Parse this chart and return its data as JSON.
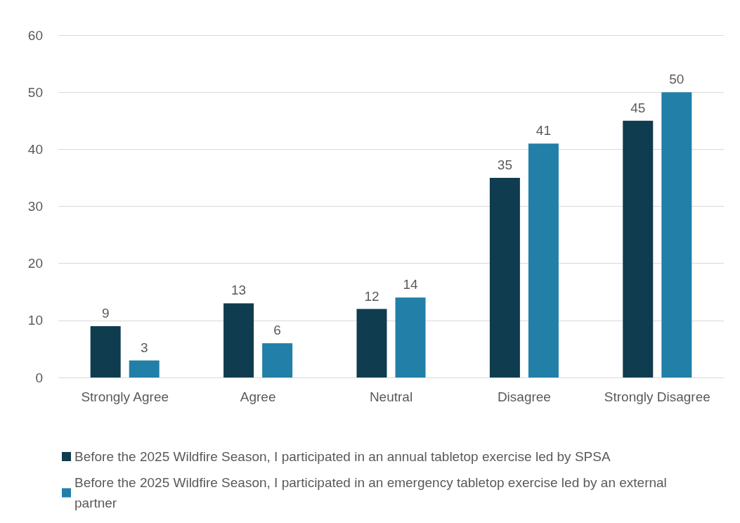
{
  "chart_data": {
    "type": "bar",
    "categories": [
      "Strongly Agree",
      "Agree",
      "Neutral",
      "Disagree",
      "Strongly Disagree"
    ],
    "series": [
      {
        "name": "Before the 2025 Wildfire Season, I participated in an annual tabletop exercise led by SPSA",
        "color": "#0f3c4f",
        "values": [
          9,
          13,
          12,
          35,
          45
        ]
      },
      {
        "name": "Before the 2025 Wildfire Season, I participated in an emergency tabletop exercise led by an external partner",
        "color": "#217fa8",
        "values": [
          3,
          6,
          14,
          41,
          50
        ]
      }
    ],
    "ylim": [
      0,
      60
    ],
    "yticks": [
      0,
      10,
      20,
      30,
      40,
      50,
      60
    ],
    "grid": "y",
    "legend": "bottom",
    "data_labels": true
  }
}
